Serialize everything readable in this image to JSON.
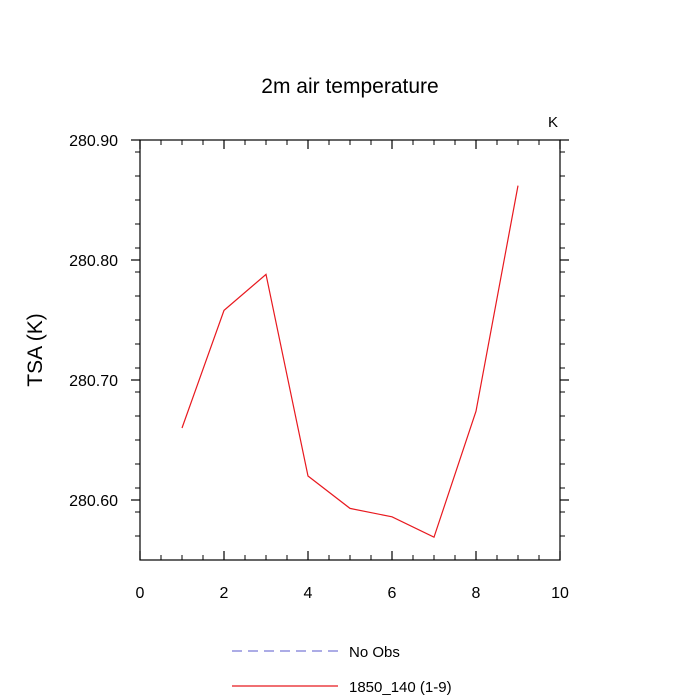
{
  "chart_data": {
    "type": "line",
    "title": "2m air temperature",
    "units_label": "K",
    "ylabel": "TSA  (K)",
    "xlabel": "",
    "xlim": [
      0,
      10
    ],
    "ylim": [
      280.55,
      280.9
    ],
    "x_ticks": [
      0,
      2,
      4,
      6,
      8,
      10
    ],
    "y_ticks": [
      280.6,
      280.7,
      280.8,
      280.9
    ],
    "y_tick_labels": [
      "280.60",
      "280.70",
      "280.80",
      "280.90"
    ],
    "grid": false,
    "legend_placement": "bottom",
    "series": [
      {
        "name": "No Obs",
        "color": "#7b7bd6",
        "style": "dashed",
        "x": [],
        "y": []
      },
      {
        "name": "1850_140 (1-9)",
        "color": "#e8191f",
        "style": "solid",
        "x": [
          1,
          2,
          3,
          4,
          5,
          6,
          7,
          8,
          9
        ],
        "y": [
          280.66,
          280.758,
          280.788,
          280.62,
          280.593,
          280.586,
          280.569,
          280.674,
          280.862
        ]
      }
    ]
  }
}
